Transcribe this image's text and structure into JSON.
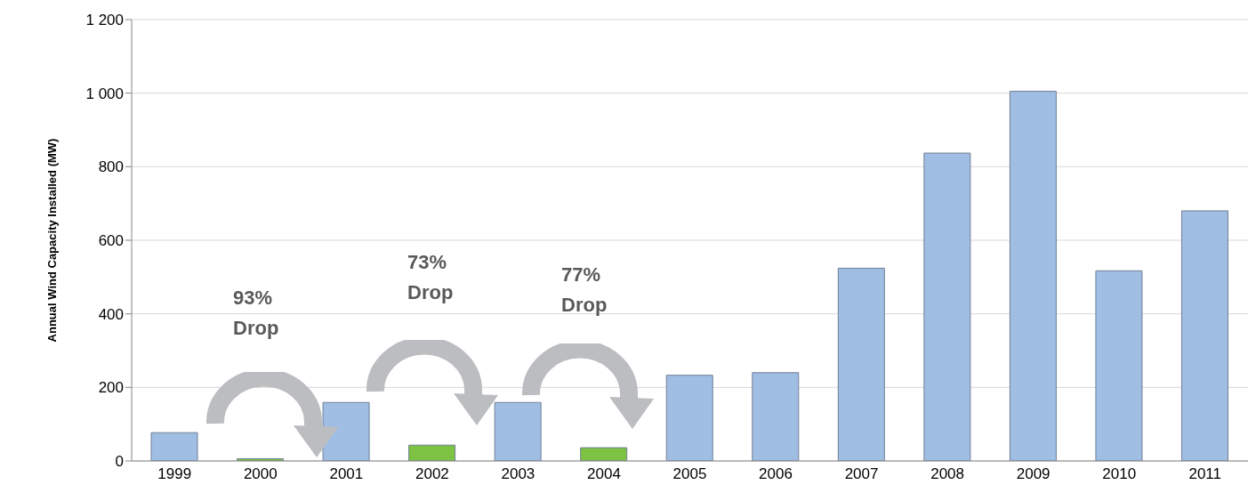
{
  "chart_data": {
    "type": "bar",
    "ylabel": "Annual Wind Capacity Installed (MW)",
    "categories": [
      "1999",
      "2000",
      "2001",
      "2002",
      "2003",
      "2004",
      "2005",
      "2006",
      "2007",
      "2008",
      "2009",
      "2010",
      "2011"
    ],
    "values": [
      77,
      6,
      159,
      43,
      159,
      36,
      233,
      240,
      524,
      837,
      1005,
      517,
      680
    ],
    "colors": [
      "#a0bde3",
      "#7dc242",
      "#a0bde3",
      "#7dc242",
      "#a0bde3",
      "#7dc242",
      "#a0bde3",
      "#a0bde3",
      "#a0bde3",
      "#a0bde3",
      "#a0bde3",
      "#a0bde3",
      "#a0bde3"
    ],
    "ylim": [
      0,
      1200
    ],
    "yticks": [
      0,
      200,
      400,
      600,
      800,
      {
        "value": 1000,
        "label": "1 000"
      },
      {
        "value": 1200,
        "label": "1 200"
      }
    ],
    "grid": "y",
    "annotations": [
      "93% Drop",
      "73% Drop",
      "77% Drop"
    ]
  }
}
